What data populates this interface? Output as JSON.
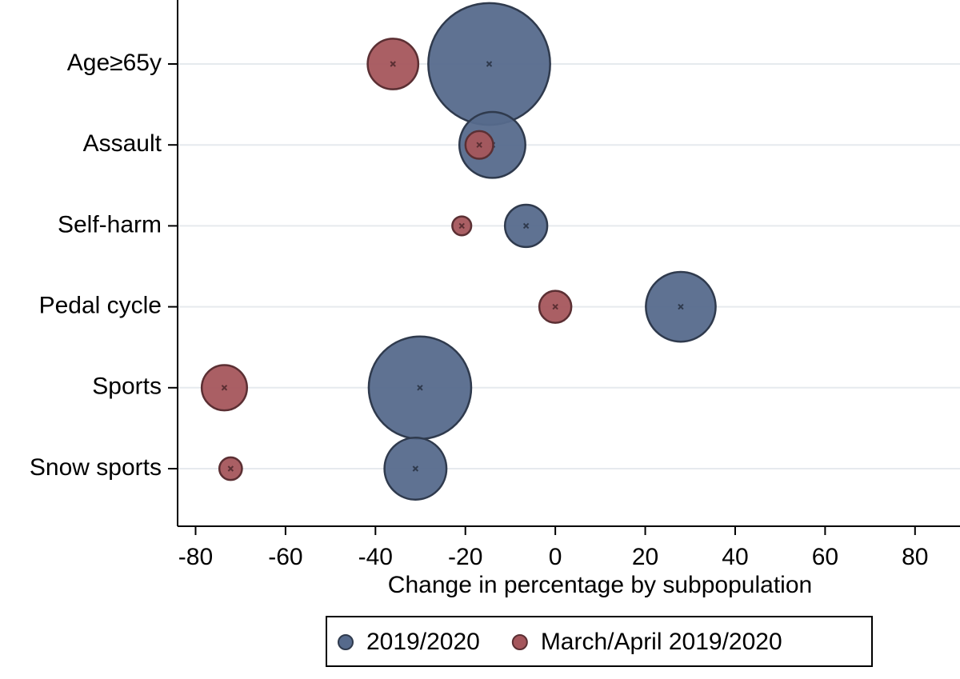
{
  "chart_data": {
    "type": "bubble",
    "x_label": "Change in percentage by subpopulation",
    "categories": [
      "Age≥65y",
      "Assault",
      "Self-harm",
      "Pedal cycle",
      "Sports",
      "Snow sports"
    ],
    "series": [
      {
        "name": "2019/2020",
        "color": "#566a8c",
        "values": [
          -14.7,
          -14.0,
          -6.5,
          27.9,
          -30.1,
          -31.1
        ],
        "sizes": [
          58,
          17,
          7,
          19,
          41,
          15
        ]
      },
      {
        "name": "March/April 2019/2020",
        "color": "#a5565c",
        "values": [
          -36.1,
          -16.9,
          -20.8,
          0,
          -73.6,
          -72.2
        ],
        "sizes": [
          10,
          3,
          1.4,
          4,
          8,
          2
        ]
      }
    ],
    "xlim": [
      -84,
      90
    ],
    "xticks": [
      -80,
      -60,
      -40,
      -20,
      0,
      20,
      40,
      60,
      80
    ],
    "grid": true,
    "legend": "bottom"
  }
}
